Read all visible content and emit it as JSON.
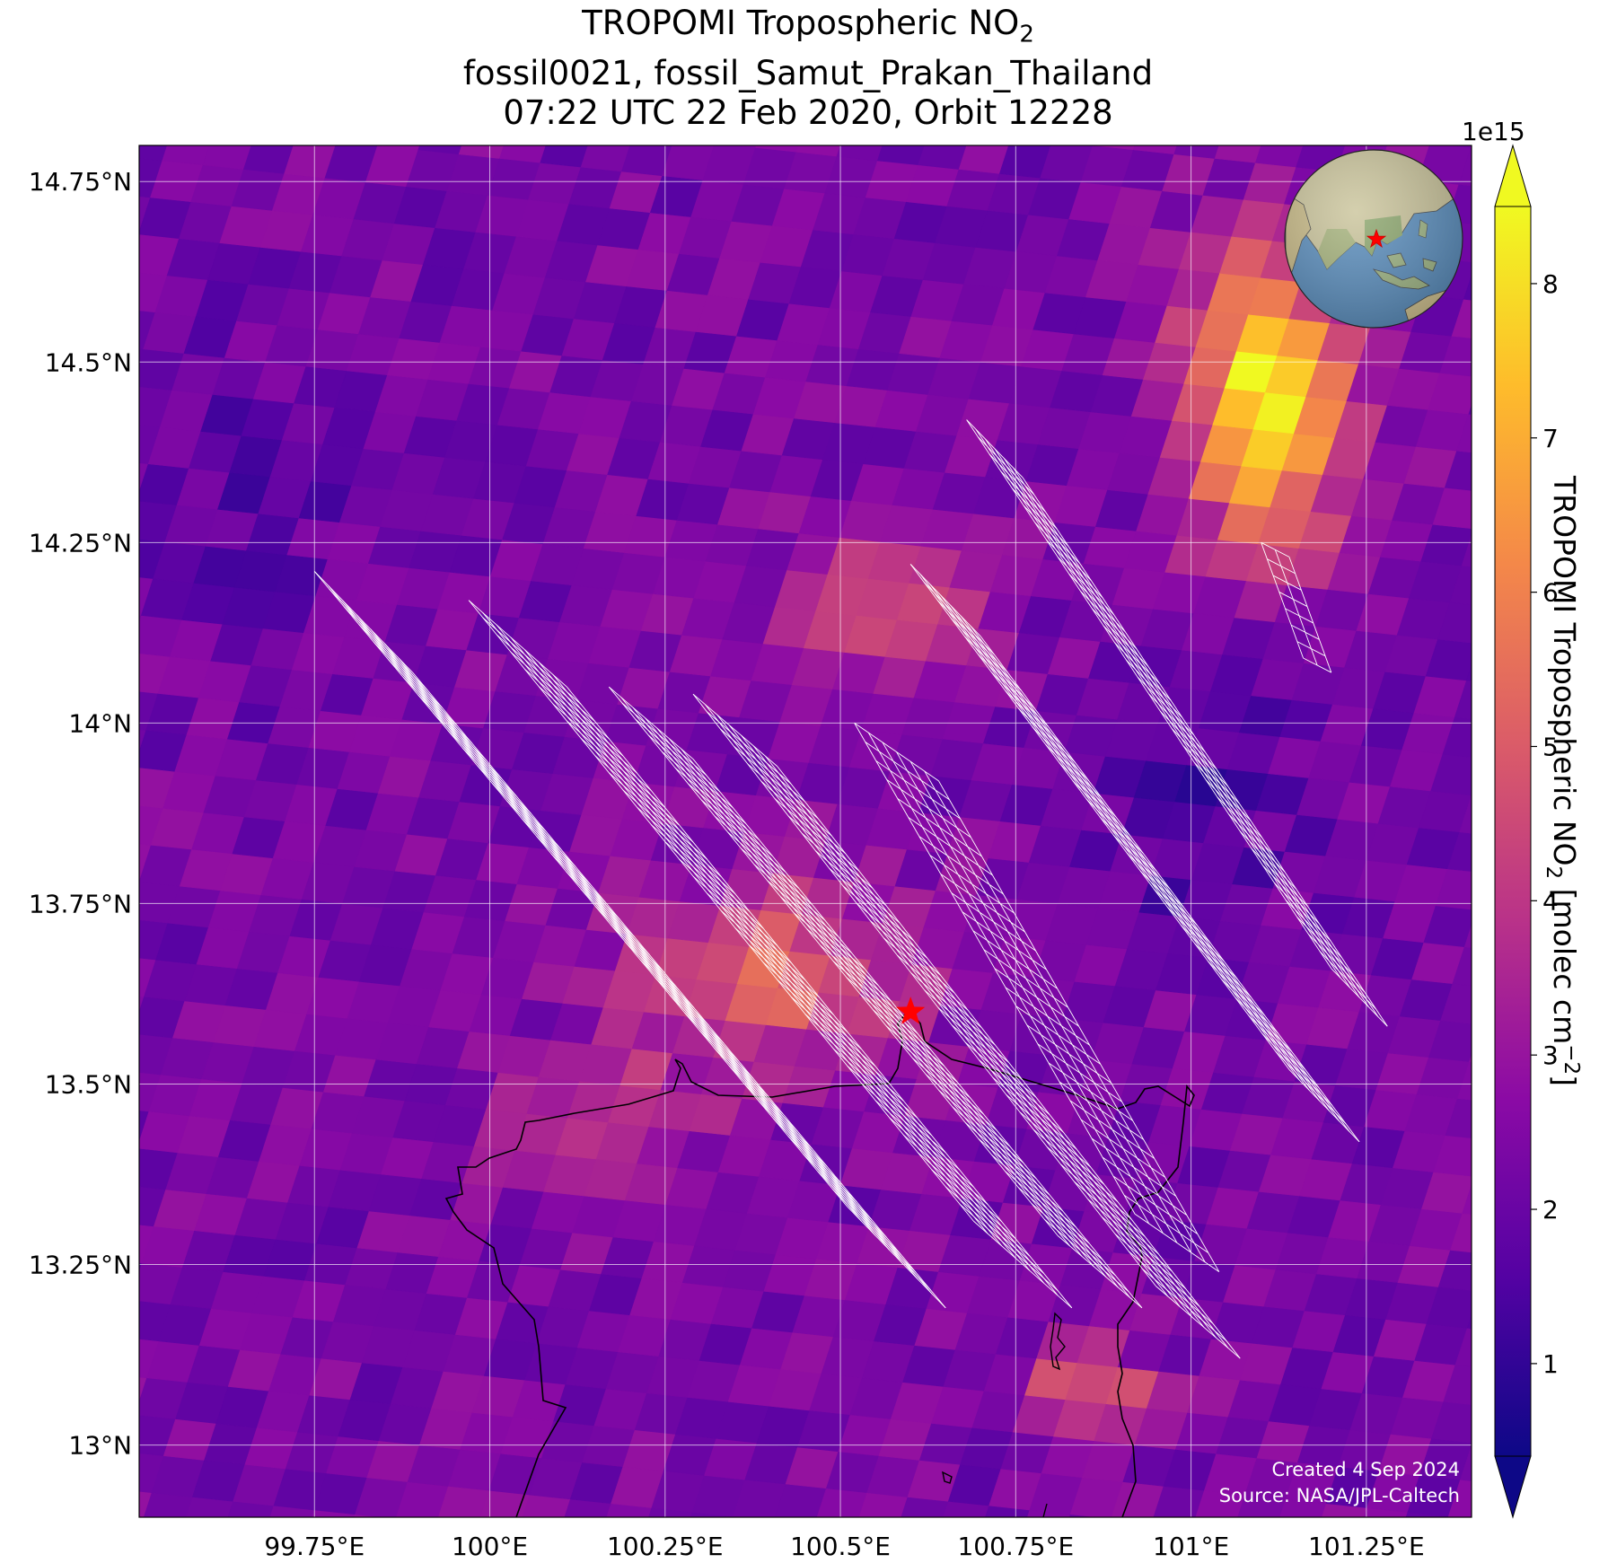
{
  "title": {
    "line1_prefix": "TROPOMI Tropospheric NO",
    "line1_sub": "2",
    "line2": "fossil0021, fossil_Samut_Prakan_Thailand",
    "line3": "07:22 UTC 22 Feb 2020, Orbit 12228"
  },
  "map": {
    "lon_range": [
      99.5,
      101.4
    ],
    "lat_range": [
      12.9,
      14.8
    ],
    "x_ticks": [
      {
        "value": 99.75,
        "label": "99.75°E"
      },
      {
        "value": 100.0,
        "label": "100°E"
      },
      {
        "value": 100.25,
        "label": "100.25°E"
      },
      {
        "value": 100.5,
        "label": "100.5°E"
      },
      {
        "value": 100.75,
        "label": "100.75°E"
      },
      {
        "value": 101.0,
        "label": "101°E"
      },
      {
        "value": 101.25,
        "label": "101.25°E"
      }
    ],
    "y_ticks": [
      {
        "value": 14.75,
        "label": "14.75°N"
      },
      {
        "value": 14.5,
        "label": "14.5°N"
      },
      {
        "value": 14.25,
        "label": "14.25°N"
      },
      {
        "value": 14.0,
        "label": "14°N"
      },
      {
        "value": 13.75,
        "label": "13.75°N"
      },
      {
        "value": 13.5,
        "label": "13.5°N"
      },
      {
        "value": 13.25,
        "label": "13.25°N"
      },
      {
        "value": 13.0,
        "label": "13°N"
      }
    ],
    "site_marker": {
      "name": "fossil_Samut_Prakan_Thailand",
      "lon": 100.6,
      "lat": 13.6,
      "color": "#ff0000"
    },
    "background_value_1e15": 2.3,
    "hotspots": [
      {
        "lon": 101.1,
        "lat": 14.45,
        "amp": 6.0,
        "sx": 0.12,
        "sy": 0.2
      },
      {
        "lon": 100.4,
        "lat": 13.65,
        "amp": 2.9,
        "sx": 0.2,
        "sy": 0.13
      },
      {
        "lon": 100.55,
        "lat": 14.18,
        "amp": 2.3,
        "sx": 0.14,
        "sy": 0.1
      },
      {
        "lon": 100.85,
        "lat": 13.08,
        "amp": 2.6,
        "sx": 0.1,
        "sy": 0.06
      },
      {
        "lon": 100.15,
        "lat": 13.45,
        "amp": 1.8,
        "sx": 0.14,
        "sy": 0.1
      },
      {
        "lon": 101.0,
        "lat": 13.9,
        "amp": -0.9,
        "sx": 0.15,
        "sy": 0.2
      },
      {
        "lon": 99.65,
        "lat": 14.3,
        "amp": -0.6,
        "sx": 0.15,
        "sy": 0.25
      }
    ],
    "target_footprints": [
      {
        "lon": 100.2,
        "lat": 13.7,
        "dx": -0.38,
        "dy": 0.44,
        "wx": 0.07,
        "wy": 0.07,
        "n_along": 36,
        "n_across": 7
      },
      {
        "lon": 100.4,
        "lat": 13.68,
        "dx": -0.36,
        "dy": 0.43,
        "wx": 0.07,
        "wy": 0.06,
        "n_along": 36,
        "n_across": 7
      },
      {
        "lon": 100.55,
        "lat": 13.62,
        "dx": -0.32,
        "dy": 0.38,
        "wx": 0.06,
        "wy": 0.05,
        "n_along": 34,
        "n_across": 7
      },
      {
        "lon": 100.68,
        "lat": 13.58,
        "dx": -0.33,
        "dy": 0.41,
        "wx": 0.06,
        "wy": 0.05,
        "n_along": 34,
        "n_across": 7
      },
      {
        "lon": 100.92,
        "lat": 13.82,
        "dx": -0.27,
        "dy": 0.35,
        "wx": 0.05,
        "wy": 0.05,
        "n_along": 28,
        "n_across": 7
      },
      {
        "lon": 100.98,
        "lat": 14.0,
        "dx": -0.26,
        "dy": 0.38,
        "wx": 0.04,
        "wy": 0.04,
        "n_along": 32,
        "n_across": 6
      },
      {
        "lon": 100.78,
        "lat": 13.62,
        "dx": -0.2,
        "dy": 0.34,
        "wx": 0.06,
        "wy": 0.04,
        "n_along": 26,
        "n_across": 6
      },
      {
        "lon": 101.15,
        "lat": 14.16,
        "dx": -0.03,
        "dy": 0.08,
        "wx": 0.02,
        "wy": 0.01,
        "n_along": 7,
        "n_across": 2
      }
    ]
  },
  "colorbar": {
    "label_prefix": "TROPOMI Tropospheric NO",
    "label_sub": "2",
    "label_units_prefix": " [molec cm",
    "label_units_sup": "−2",
    "label_units_suffix": "]",
    "exponent": "1e15",
    "range": [
      0.4,
      8.5
    ],
    "ticks": [
      "1",
      "2",
      "3",
      "4",
      "5",
      "6",
      "7",
      "8"
    ],
    "colormap": "plasma"
  },
  "inset_globe": {
    "center": "Southeast Asia",
    "marker_color": "#ff0000",
    "ocean_color": "#5b8fbf",
    "land_color": "#cbc59c"
  },
  "credits": {
    "created": "Created 4 Sep 2024",
    "source": "Source: NASA/JPL-Caltech"
  }
}
